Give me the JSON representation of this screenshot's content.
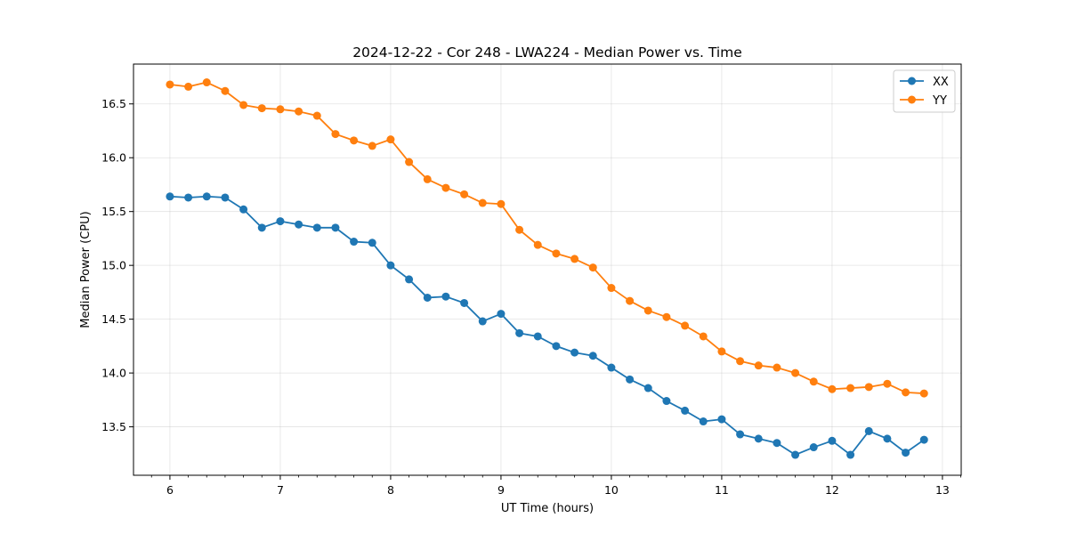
{
  "chart_data": {
    "type": "line",
    "title": "2024-12-22 - Cor 248 - LWA224 - Median Power vs. Time",
    "xlabel": "UT Time (hours)",
    "ylabel": "Median Power (CPU)",
    "xlim": [
      5.67,
      13.17
    ],
    "ylim": [
      13.05,
      16.87
    ],
    "xticks": [
      6,
      7,
      8,
      9,
      10,
      11,
      12,
      13
    ],
    "yticks": [
      13.5,
      14.0,
      14.5,
      15.0,
      15.5,
      16.0,
      16.5
    ],
    "xtick_labels": [
      "6",
      "7",
      "8",
      "9",
      "10",
      "11",
      "12",
      "13"
    ],
    "ytick_labels": [
      "13.5",
      "14.0",
      "14.5",
      "15.0",
      "15.5",
      "16.0",
      "16.5"
    ],
    "grid": true,
    "legend_position": "top-right",
    "x": [
      6.0,
      6.1667,
      6.3333,
      6.5,
      6.6667,
      6.8333,
      7.0,
      7.1667,
      7.3333,
      7.5,
      7.6667,
      7.8333,
      8.0,
      8.1667,
      8.3333,
      8.5,
      8.6667,
      8.8333,
      9.0,
      9.1667,
      9.3333,
      9.5,
      9.6667,
      9.8333,
      10.0,
      10.1667,
      10.3333,
      10.5,
      10.6667,
      10.8333,
      11.0,
      11.1667,
      11.3333,
      11.5,
      11.6667,
      11.8333,
      12.0,
      12.1667,
      12.3333,
      12.5,
      12.6667,
      12.8333
    ],
    "series": [
      {
        "name": "XX",
        "color": "#1f77b4",
        "values": [
          15.64,
          15.63,
          15.64,
          15.63,
          15.52,
          15.35,
          15.41,
          15.38,
          15.35,
          15.35,
          15.22,
          15.21,
          15.0,
          14.87,
          14.7,
          14.71,
          14.65,
          14.48,
          14.55,
          14.37,
          14.34,
          14.25,
          14.19,
          14.16,
          14.05,
          13.94,
          13.86,
          13.74,
          13.65,
          13.55,
          13.57,
          13.43,
          13.39,
          13.35,
          13.24,
          13.31,
          13.37,
          13.24,
          13.46,
          13.39,
          13.26,
          13.38
        ]
      },
      {
        "name": "YY",
        "color": "#ff7f0e",
        "values": [
          16.68,
          16.66,
          16.7,
          16.62,
          16.49,
          16.46,
          16.45,
          16.43,
          16.39,
          16.22,
          16.16,
          16.11,
          16.17,
          15.96,
          15.8,
          15.72,
          15.66,
          15.58,
          15.57,
          15.33,
          15.19,
          15.11,
          15.06,
          14.98,
          14.79,
          14.67,
          14.58,
          14.52,
          14.44,
          14.34,
          14.2,
          14.11,
          14.07,
          14.05,
          14.0,
          13.92,
          13.85,
          13.86,
          13.87,
          13.9,
          13.82,
          13.81
        ]
      }
    ]
  }
}
